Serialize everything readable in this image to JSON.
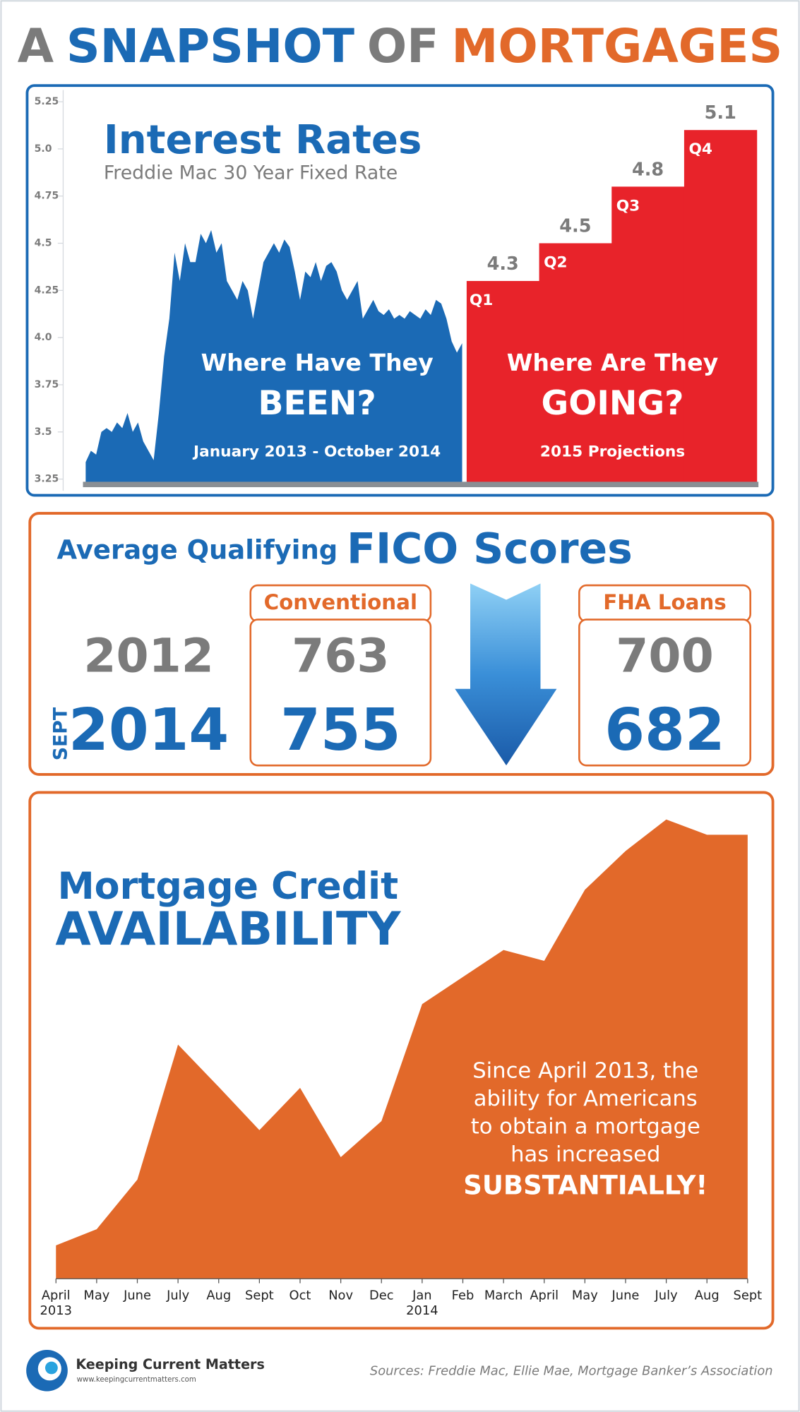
{
  "header": {
    "title_parts": [
      "A",
      "SNAPSHOT",
      "OF",
      "MORTGAGES"
    ]
  },
  "chart_data": [
    {
      "type": "area",
      "title": "Interest Rates",
      "subtitle": "Freddie Mac 30 Year Fixed Rate",
      "annotation": [
        "Where Have They",
        "BEEN?"
      ],
      "period": "January 2013 - October 2014",
      "color": "#1b6ab5",
      "values": [
        3.34,
        3.4,
        3.38,
        3.5,
        3.52,
        3.5,
        3.55,
        3.52,
        3.6,
        3.5,
        3.55,
        3.45,
        3.4,
        3.35,
        3.6,
        3.9,
        4.1,
        4.45,
        4.3,
        4.5,
        4.4,
        4.4,
        4.55,
        4.5,
        4.57,
        4.45,
        4.5,
        4.3,
        4.25,
        4.2,
        4.3,
        4.25,
        4.1,
        4.25,
        4.4,
        4.45,
        4.5,
        4.45,
        4.52,
        4.48,
        4.35,
        4.2,
        4.35,
        4.32,
        4.4,
        4.3,
        4.38,
        4.4,
        4.35,
        4.25,
        4.2,
        4.25,
        4.3,
        4.1,
        4.15,
        4.2,
        4.14,
        4.12,
        4.15,
        4.1,
        4.12,
        4.1,
        4.14,
        4.12,
        4.1,
        4.15,
        4.12,
        4.2,
        4.18,
        4.1,
        3.98,
        3.92,
        3.97
      ],
      "ylim": [
        3.22,
        5.3
      ],
      "yticks": [
        3.25,
        3.5,
        3.75,
        {
          "value": 4,
          "label": "4.0"
        },
        4.25,
        4.5,
        4.75,
        {
          "value": 5,
          "label": "5.0"
        },
        5.25
      ]
    },
    {
      "type": "bar",
      "annotation": [
        "Where Are They",
        "GOING?"
      ],
      "period": "2015 Projections",
      "categories": [
        "Q1",
        "Q2",
        "Q3",
        "Q4"
      ],
      "values": [
        4.3,
        4.5,
        4.8,
        5.1
      ],
      "color": "#e8232a",
      "ylim": [
        3.22,
        5.3
      ]
    },
    {
      "type": "area",
      "title": [
        "Mortgage Credit",
        "AVAILABILITY"
      ],
      "note": [
        "Since April 2013, the",
        "ability for Americans",
        "to obtain a mortgage",
        "has increased"
      ],
      "emphasis": "SUBSTANTIALLY!",
      "categories": [
        "April",
        "May",
        "June",
        "July",
        "Aug",
        "Sept",
        "Oct",
        "Nov",
        "Dec",
        "Jan",
        "Feb",
        "March",
        "April",
        "May",
        "June",
        "July",
        "Aug",
        "Sept"
      ],
      "category_years": [
        "2013",
        null,
        null,
        null,
        null,
        null,
        null,
        null,
        null,
        "2014",
        null,
        null,
        null,
        null,
        null,
        null,
        null,
        null
      ],
      "values": [
        37,
        55,
        110,
        260,
        213,
        165,
        212,
        135,
        175,
        305,
        335,
        365,
        353,
        432,
        475,
        510,
        493,
        493
      ],
      "color": "#e2692a",
      "ylim": [
        0,
        550
      ]
    }
  ],
  "fico": {
    "title_lead": "Average Qualifying",
    "title_main": "FICO Scores",
    "rows": [
      {
        "label": "2012"
      },
      {
        "prefix": "SEPT",
        "label": "2014"
      }
    ],
    "columns": [
      {
        "name": "Conventional",
        "values": [
          763,
          755
        ]
      },
      {
        "name": "FHA Loans",
        "values": [
          700,
          682
        ]
      }
    ]
  },
  "footer": {
    "brand": "Keeping Current Matters",
    "url": "www.keepingcurrentmatters.com",
    "sources": "Sources: Freddie Mac, Ellie Mae, Mortgage Banker’s Association"
  }
}
